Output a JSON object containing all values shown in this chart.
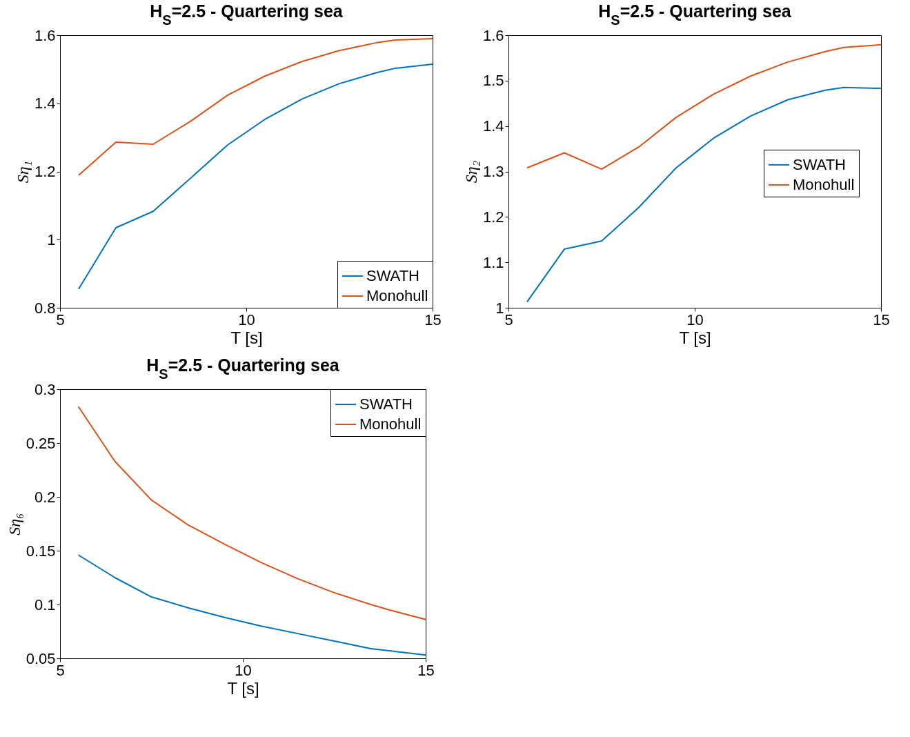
{
  "chart_data": [
    {
      "type": "line",
      "title": "H$_{S}$=2.5 - Quartering sea",
      "xlabel": "T [s]",
      "ylabel": "Sη₁",
      "xlim": [
        5,
        15
      ],
      "xticks": [
        5,
        10,
        15
      ],
      "ylim": [
        0.8,
        1.6
      ],
      "yticks": [
        0.8,
        1,
        1.2,
        1.4,
        1.6
      ],
      "legend": "bottom right",
      "grid": false,
      "x": [
        5.5,
        6.5,
        7.5,
        8.5,
        9.5,
        10.5,
        11.5,
        12.5,
        13.5,
        14,
        15
      ],
      "series": [
        {
          "name": "SWATH",
          "color": "#0072bd",
          "values": [
            0.855,
            1.035,
            1.083,
            1.18,
            1.278,
            1.353,
            1.413,
            1.458,
            1.49,
            1.503,
            1.515
          ]
        },
        {
          "name": "Monohull",
          "color": "#d95319",
          "values": [
            1.189,
            1.286,
            1.28,
            1.347,
            1.424,
            1.48,
            1.523,
            1.555,
            1.578,
            1.586,
            1.59
          ]
        }
      ]
    },
    {
      "type": "line",
      "title": "H$_{S}$=2.5 - Quartering sea",
      "xlabel": "T [s]",
      "ylabel": "Sη₂",
      "xlim": [
        5,
        15
      ],
      "xticks": [
        5,
        10,
        15
      ],
      "ylim": [
        1,
        1.6
      ],
      "yticks": [
        1,
        1.1,
        1.2,
        1.3,
        1.4,
        1.5,
        1.6
      ],
      "legend": "right",
      "grid": false,
      "x": [
        5.5,
        6.5,
        7.5,
        8.5,
        9.5,
        10.5,
        11.5,
        12.5,
        13.5,
        14,
        15
      ],
      "series": [
        {
          "name": "SWATH",
          "color": "#0072bd",
          "values": [
            1.013,
            1.129,
            1.147,
            1.221,
            1.308,
            1.373,
            1.422,
            1.458,
            1.479,
            1.485,
            1.483
          ]
        },
        {
          "name": "Monohull",
          "color": "#d95319",
          "values": [
            1.308,
            1.341,
            1.305,
            1.354,
            1.419,
            1.47,
            1.51,
            1.541,
            1.564,
            1.573,
            1.579
          ]
        }
      ]
    },
    {
      "type": "line",
      "title": "H$_{S}$=2.5 - Quartering sea",
      "xlabel": "T [s]",
      "ylabel": "Sη₆",
      "xlim": [
        5,
        15
      ],
      "xticks": [
        5,
        10,
        15
      ],
      "ylim": [
        0.05,
        0.3
      ],
      "yticks": [
        0.05,
        0.1,
        0.15,
        0.2,
        0.25,
        0.3
      ],
      "legend": "top right",
      "grid": false,
      "x": [
        5.5,
        6.5,
        7.5,
        8.5,
        9.5,
        10.5,
        11.5,
        12.5,
        13.5,
        14,
        15
      ],
      "series": [
        {
          "name": "SWATH",
          "color": "#0072bd",
          "values": [
            0.146,
            0.125,
            0.107,
            0.097,
            0.088,
            0.08,
            0.073,
            0.066,
            0.059,
            0.057,
            0.053
          ]
        },
        {
          "name": "Monohull",
          "color": "#d95319",
          "values": [
            0.284,
            0.233,
            0.197,
            0.174,
            0.156,
            0.139,
            0.124,
            0.111,
            0.1,
            0.095,
            0.086
          ]
        }
      ]
    }
  ]
}
